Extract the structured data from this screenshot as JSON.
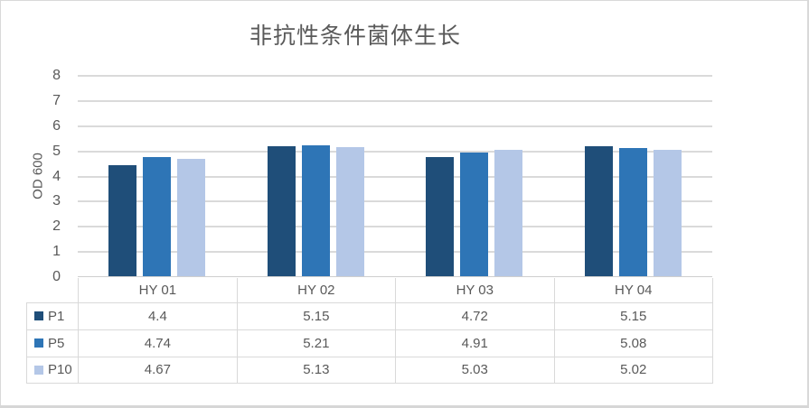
{
  "chart_data": {
    "type": "bar",
    "title": "非抗性条件菌体生长",
    "xlabel": "",
    "ylabel": "OD 600",
    "categories": [
      "HY 01",
      "HY 02",
      "HY 03",
      "HY 04"
    ],
    "series": [
      {
        "name": "P1",
        "color": "#1F4E79",
        "values": [
          4.4,
          5.15,
          4.72,
          5.15
        ]
      },
      {
        "name": "P5",
        "color": "#2E75B6",
        "values": [
          4.74,
          5.21,
          4.91,
          5.08
        ]
      },
      {
        "name": "P10",
        "color": "#B4C7E7",
        "values": [
          4.67,
          5.13,
          5.03,
          5.02
        ]
      }
    ],
    "ylim": [
      0,
      8
    ],
    "ytick_step": 1,
    "ytick_labels": [
      "0",
      "1",
      "2",
      "3",
      "4",
      "5",
      "6",
      "7",
      "8"
    ],
    "grid": true,
    "legend_position": "data-table-left",
    "data_table_shown": true
  },
  "colors": {
    "text": "#595959",
    "gridline": "#DADADA",
    "axis_line": "#CFCFCF",
    "table_border": "#D9D9D9",
    "chart_border": "#D9D9D9",
    "background": "#FFFFFF"
  }
}
